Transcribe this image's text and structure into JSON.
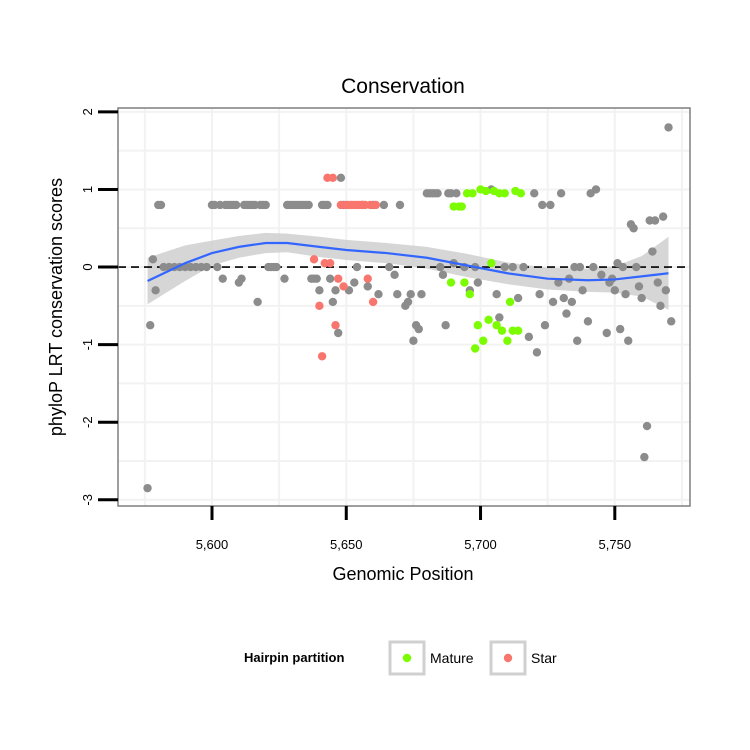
{
  "chart_data": {
    "type": "scatter",
    "title": "Conservation",
    "xlabel": "Genomic Position",
    "ylabel": "phyloP LRT conservation scores",
    "xlim": [
      5565,
      5778
    ],
    "ylim": [
      -3.08,
      2.05
    ],
    "x_ticks": [
      5600,
      5650,
      5700,
      5750
    ],
    "x_tick_labels": [
      "5,600",
      "5,650",
      "5,700",
      "5,750"
    ],
    "y_ticks": [
      -3,
      -2,
      -1,
      0,
      1,
      2
    ],
    "y_tick_labels": [
      "-3",
      "-2",
      "-1",
      "0",
      "1",
      "2"
    ],
    "grid": true,
    "reference_line": {
      "y": 0,
      "style": "dashed"
    },
    "legend": {
      "title": "Hairpin partition",
      "position": "bottom",
      "entries": [
        {
          "label": "Mature",
          "color": "#7cfc00"
        },
        {
          "label": "Star",
          "color": "#f8766d"
        }
      ]
    },
    "colors": {
      "other": "#8c8c8c",
      "mature": "#7cfc00",
      "star": "#f8766d",
      "smooth": "#3366ff",
      "band": "#cccccc"
    },
    "series": [
      {
        "group": "other",
        "points": [
          [
            5576,
            -2.85
          ],
          [
            5577,
            -0.75
          ],
          [
            5578,
            0.1
          ],
          [
            5579,
            -0.3
          ],
          [
            5580,
            0.8
          ],
          [
            5581,
            0.8
          ],
          [
            5582,
            0.0
          ],
          [
            5584,
            0.0
          ],
          [
            5586,
            0.0
          ],
          [
            5588,
            0.0
          ],
          [
            5590,
            0.0
          ],
          [
            5592,
            0.0
          ],
          [
            5594,
            0.0
          ],
          [
            5596,
            0.0
          ],
          [
            5598,
            0.0
          ],
          [
            5600,
            0.8
          ],
          [
            5601,
            0.8
          ],
          [
            5602,
            0.0
          ],
          [
            5603,
            0.8
          ],
          [
            5604,
            -0.15
          ],
          [
            5605,
            0.8
          ],
          [
            5606,
            0.8
          ],
          [
            5607,
            0.8
          ],
          [
            5608,
            0.8
          ],
          [
            5609,
            0.8
          ],
          [
            5610,
            -0.2
          ],
          [
            5611,
            -0.15
          ],
          [
            5612,
            0.8
          ],
          [
            5613,
            0.8
          ],
          [
            5614,
            0.8
          ],
          [
            5615,
            0.8
          ],
          [
            5616,
            0.8
          ],
          [
            5617,
            -0.45
          ],
          [
            5618,
            0.8
          ],
          [
            5619,
            0.8
          ],
          [
            5620,
            0.8
          ],
          [
            5621,
            0.0
          ],
          [
            5622,
            0.0
          ],
          [
            5623,
            0.0
          ],
          [
            5624,
            0.0
          ],
          [
            5627,
            -0.15
          ],
          [
            5628,
            0.8
          ],
          [
            5629,
            0.8
          ],
          [
            5630,
            0.8
          ],
          [
            5631,
            0.8
          ],
          [
            5632,
            0.8
          ],
          [
            5633,
            0.8
          ],
          [
            5634,
            0.8
          ],
          [
            5635,
            0.8
          ],
          [
            5636,
            0.8
          ],
          [
            5637,
            -0.15
          ],
          [
            5638,
            -0.15
          ],
          [
            5639,
            -0.15
          ],
          [
            5640,
            -0.3
          ],
          [
            5641,
            0.8
          ],
          [
            5642,
            0.8
          ],
          [
            5643,
            0.8
          ],
          [
            5644,
            -0.15
          ],
          [
            5645,
            -0.45
          ],
          [
            5646,
            -0.3
          ],
          [
            5647,
            -0.85
          ],
          [
            5648,
            1.15
          ],
          [
            5649,
            0.8
          ],
          [
            5651,
            -0.3
          ],
          [
            5653,
            -0.2
          ],
          [
            5654,
            0.0
          ],
          [
            5656,
            0.8
          ],
          [
            5658,
            -0.25
          ],
          [
            5660,
            0.8
          ],
          [
            5662,
            -0.35
          ],
          [
            5664,
            0.8
          ],
          [
            5666,
            0.0
          ],
          [
            5668,
            -0.1
          ],
          [
            5669,
            -0.35
          ],
          [
            5670,
            0.8
          ],
          [
            5672,
            -0.5
          ],
          [
            5673,
            -0.45
          ],
          [
            5674,
            -0.35
          ],
          [
            5675,
            -0.95
          ],
          [
            5676,
            -0.75
          ],
          [
            5677,
            -0.8
          ],
          [
            5678,
            -0.35
          ],
          [
            5680,
            0.95
          ],
          [
            5681,
            0.95
          ],
          [
            5682,
            0.95
          ],
          [
            5683,
            0.95
          ],
          [
            5684,
            0.95
          ],
          [
            5685,
            0.0
          ],
          [
            5686,
            -0.1
          ],
          [
            5687,
            -0.75
          ],
          [
            5688,
            0.95
          ],
          [
            5689,
            0.95
          ],
          [
            5690,
            0.05
          ],
          [
            5691,
            0.95
          ],
          [
            5694,
            0.0
          ],
          [
            5696,
            -0.3
          ],
          [
            5698,
            0.0
          ],
          [
            5699,
            -0.2
          ],
          [
            5704,
            1.0
          ],
          [
            5706,
            -0.35
          ],
          [
            5707,
            -0.65
          ],
          [
            5709,
            0.0
          ],
          [
            5712,
            0.0
          ],
          [
            5714,
            -0.4
          ],
          [
            5716,
            0.0
          ],
          [
            5718,
            -0.9
          ],
          [
            5720,
            0.95
          ],
          [
            5721,
            -1.1
          ],
          [
            5722,
            -0.35
          ],
          [
            5723,
            0.8
          ],
          [
            5724,
            -0.75
          ],
          [
            5726,
            0.8
          ],
          [
            5727,
            -0.45
          ],
          [
            5729,
            -0.2
          ],
          [
            5730,
            0.95
          ],
          [
            5731,
            -0.4
          ],
          [
            5732,
            -0.6
          ],
          [
            5733,
            -0.15
          ],
          [
            5734,
            -0.45
          ],
          [
            5735,
            0.0
          ],
          [
            5736,
            -0.95
          ],
          [
            5737,
            0.0
          ],
          [
            5738,
            -0.3
          ],
          [
            5740,
            -0.7
          ],
          [
            5741,
            0.95
          ],
          [
            5742,
            0.0
          ],
          [
            5743,
            1.0
          ],
          [
            5745,
            -0.1
          ],
          [
            5747,
            -0.85
          ],
          [
            5748,
            -0.2
          ],
          [
            5749,
            -0.15
          ],
          [
            5750,
            -0.3
          ],
          [
            5751,
            0.05
          ],
          [
            5752,
            -0.8
          ],
          [
            5753,
            0.0
          ],
          [
            5754,
            -0.35
          ],
          [
            5755,
            -0.95
          ],
          [
            5756,
            0.55
          ],
          [
            5757,
            0.5
          ],
          [
            5758,
            0.0
          ],
          [
            5759,
            -0.25
          ],
          [
            5760,
            -0.4
          ],
          [
            5761,
            -2.45
          ],
          [
            5762,
            -2.05
          ],
          [
            5763,
            0.6
          ],
          [
            5764,
            0.2
          ],
          [
            5765,
            0.6
          ],
          [
            5766,
            -0.2
          ],
          [
            5767,
            -0.5
          ],
          [
            5768,
            0.65
          ],
          [
            5769,
            -0.3
          ],
          [
            5770,
            1.8
          ],
          [
            5771,
            -0.7
          ]
        ]
      },
      {
        "group": "mature",
        "name": "Mature",
        "points": [
          [
            5689,
            -0.2
          ],
          [
            5690,
            0.78
          ],
          [
            5692,
            0.78
          ],
          [
            5693,
            0.78
          ],
          [
            5694,
            -0.2
          ],
          [
            5695,
            0.95
          ],
          [
            5696,
            -0.35
          ],
          [
            5697,
            0.95
          ],
          [
            5698,
            -1.05
          ],
          [
            5699,
            -0.75
          ],
          [
            5700,
            1.0
          ],
          [
            5701,
            -0.95
          ],
          [
            5702,
            0.98
          ],
          [
            5703,
            -0.68
          ],
          [
            5704,
            0.05
          ],
          [
            5705,
            0.98
          ],
          [
            5706,
            -0.75
          ],
          [
            5707,
            0.95
          ],
          [
            5708,
            -0.82
          ],
          [
            5709,
            0.95
          ],
          [
            5710,
            -0.95
          ],
          [
            5711,
            -0.45
          ],
          [
            5712,
            -0.82
          ],
          [
            5713,
            0.98
          ],
          [
            5714,
            -0.82
          ],
          [
            5715,
            0.95
          ]
        ]
      },
      {
        "group": "star",
        "name": "Star",
        "points": [
          [
            5638,
            0.1
          ],
          [
            5640,
            -0.5
          ],
          [
            5641,
            -1.15
          ],
          [
            5642,
            0.05
          ],
          [
            5643,
            1.15
          ],
          [
            5644,
            0.05
          ],
          [
            5645,
            1.15
          ],
          [
            5646,
            -0.75
          ],
          [
            5647,
            -0.15
          ],
          [
            5648,
            0.8
          ],
          [
            5649,
            -0.25
          ],
          [
            5650,
            0.8
          ],
          [
            5651,
            0.8
          ],
          [
            5652,
            0.8
          ],
          [
            5653,
            0.8
          ],
          [
            5654,
            0.8
          ],
          [
            5655,
            0.8
          ],
          [
            5656,
            0.8
          ],
          [
            5657,
            0.8
          ],
          [
            5658,
            -0.15
          ],
          [
            5659,
            0.8
          ],
          [
            5660,
            -0.45
          ],
          [
            5661,
            0.8
          ]
        ]
      }
    ],
    "smooth": {
      "x": [
        5576,
        5590,
        5600,
        5610,
        5620,
        5628,
        5640,
        5650,
        5665,
        5680,
        5695,
        5710,
        5725,
        5740,
        5750,
        5760,
        5770
      ],
      "y": [
        -0.18,
        0.05,
        0.18,
        0.26,
        0.31,
        0.31,
        0.26,
        0.22,
        0.18,
        0.12,
        0.02,
        -0.08,
        -0.15,
        -0.17,
        -0.16,
        -0.12,
        -0.08
      ],
      "lower": [
        -0.48,
        -0.18,
        0.02,
        0.12,
        0.18,
        0.19,
        0.13,
        0.09,
        0.05,
        -0.02,
        -0.13,
        -0.22,
        -0.29,
        -0.32,
        -0.33,
        -0.38,
        -0.55
      ],
      "upper": [
        0.12,
        0.28,
        0.34,
        0.4,
        0.44,
        0.43,
        0.39,
        0.35,
        0.31,
        0.26,
        0.17,
        0.06,
        -0.01,
        -0.02,
        0.01,
        0.14,
        0.39
      ]
    }
  }
}
